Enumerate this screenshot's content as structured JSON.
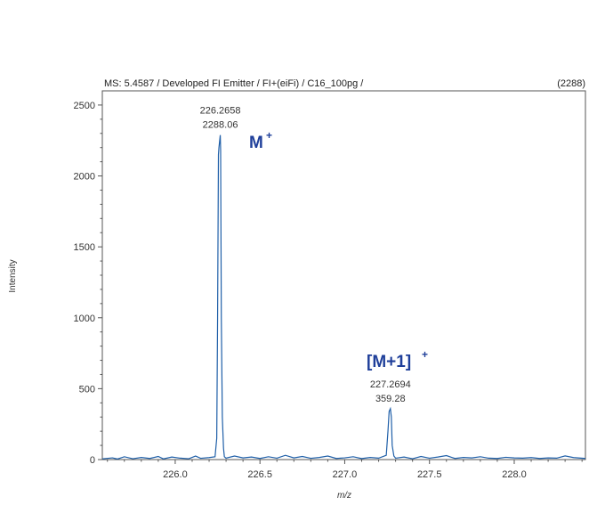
{
  "chart_data": {
    "type": "line",
    "header": "MS: 5.4587 / Developed FI Emitter / FI+(eiFi) / C16_100pg /",
    "header_max": "(2288)",
    "xlabel": "m/z",
    "ylabel": "Intensity",
    "xlim": [
      225.57,
      228.42
    ],
    "ylim": [
      0,
      2600
    ],
    "x_ticks": [
      226.0,
      226.5,
      227.0,
      227.5,
      228.0
    ],
    "x_tick_labels": [
      "226.0",
      "226.5",
      "227.0",
      "227.5",
      "228.0"
    ],
    "y_ticks": [
      0,
      500,
      1000,
      1500,
      2000,
      2500
    ],
    "y_tick_labels": [
      "0",
      "500",
      "1000",
      "1500",
      "2000",
      "2500"
    ],
    "line_color": "#1f5fa8",
    "ion_label_color": "#1f3f9a",
    "series": [
      {
        "x": [
          225.57,
          225.63,
          225.66,
          225.7,
          225.75,
          225.8,
          225.85,
          225.9,
          225.93,
          225.98,
          226.03,
          226.08,
          226.12,
          226.15,
          226.2,
          226.235,
          226.245,
          226.25,
          226.255,
          226.258,
          226.2658,
          226.268,
          226.272,
          226.278,
          226.285,
          226.29,
          226.3,
          226.35,
          226.4,
          226.45,
          226.5,
          226.55,
          226.6,
          226.65,
          226.7,
          226.75,
          226.8,
          226.85,
          226.9,
          226.95,
          227.0,
          227.05,
          227.1,
          227.15,
          227.2,
          227.245,
          227.255,
          227.262,
          227.2694,
          227.275,
          227.28,
          227.29,
          227.3,
          227.35,
          227.4,
          227.45,
          227.5,
          227.55,
          227.6,
          227.65,
          227.7,
          227.75,
          227.8,
          227.85,
          227.9,
          227.95,
          228.0,
          228.05,
          228.1,
          228.15,
          228.2,
          228.25,
          228.3,
          228.35,
          228.42
        ],
        "y": [
          5,
          12,
          4,
          20,
          6,
          15,
          8,
          22,
          5,
          18,
          10,
          6,
          25,
          9,
          14,
          20,
          150,
          1000,
          2150,
          2200,
          2288.06,
          2180,
          1000,
          300,
          80,
          20,
          10,
          25,
          12,
          18,
          8,
          20,
          10,
          30,
          12,
          22,
          9,
          15,
          25,
          8,
          12,
          20,
          7,
          15,
          10,
          30,
          200,
          340,
          359.28,
          300,
          100,
          25,
          10,
          18,
          6,
          22,
          10,
          18,
          28,
          8,
          15,
          12,
          20,
          10,
          8,
          16,
          12,
          10,
          14,
          8,
          12,
          10,
          26,
          14,
          8
        ]
      }
    ],
    "peaks": [
      {
        "mz_label": "226.2658",
        "intensity_label": "2288.06",
        "ion": "M",
        "ion_sup": "+"
      },
      {
        "mz_label": "227.2694",
        "intensity_label": "359.28",
        "ion": "[M+1]",
        "ion_sup": "+"
      }
    ]
  }
}
